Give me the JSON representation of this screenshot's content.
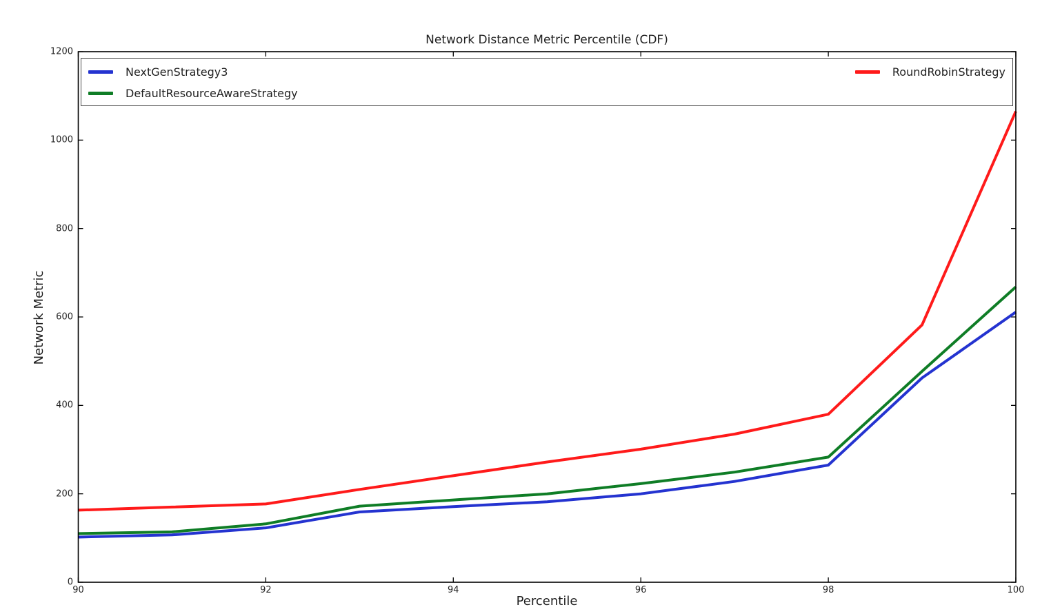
{
  "chart_data": {
    "type": "line",
    "title": "Network Distance Metric Percentile (CDF)",
    "xlabel": "Percentile",
    "ylabel": "Network Metric",
    "xlim": [
      90,
      100
    ],
    "ylim": [
      0,
      1200
    ],
    "x_ticks": [
      "90",
      "92",
      "94",
      "96",
      "98",
      "100"
    ],
    "x_tick_values": [
      90,
      92,
      94,
      96,
      98,
      100
    ],
    "y_ticks": [
      "0",
      "200",
      "400",
      "600",
      "800",
      "1000",
      "1200"
    ],
    "y_tick_values": [
      0,
      200,
      400,
      600,
      800,
      1000,
      1200
    ],
    "grid": false,
    "legend_position": "top full-width framed box, two columns: left column stacks NextGenStrategy3 and DefaultResourceAwareStrategy, right column shows RoundRobinStrategy",
    "x": [
      90,
      91,
      92,
      93,
      94,
      95,
      96,
      97,
      98,
      99,
      100
    ],
    "series": [
      {
        "name": "NextGenStrategy3",
        "color": "#2433d0",
        "values": [
          102,
          107,
          123,
          159,
          171,
          182,
          200,
          228,
          265,
          462,
          611
        ]
      },
      {
        "name": "DefaultResourceAwareStrategy",
        "color": "#0f7d26",
        "values": [
          110,
          114,
          132,
          172,
          186,
          200,
          223,
          249,
          283,
          477,
          668
        ]
      },
      {
        "name": "RoundRobinStrategy",
        "color": "#ff1a1a",
        "values": [
          163,
          170,
          177,
          210,
          241,
          272,
          301,
          335,
          380,
          582,
          1065
        ]
      }
    ],
    "axis_color": "#000000",
    "tick_direction": "in"
  }
}
